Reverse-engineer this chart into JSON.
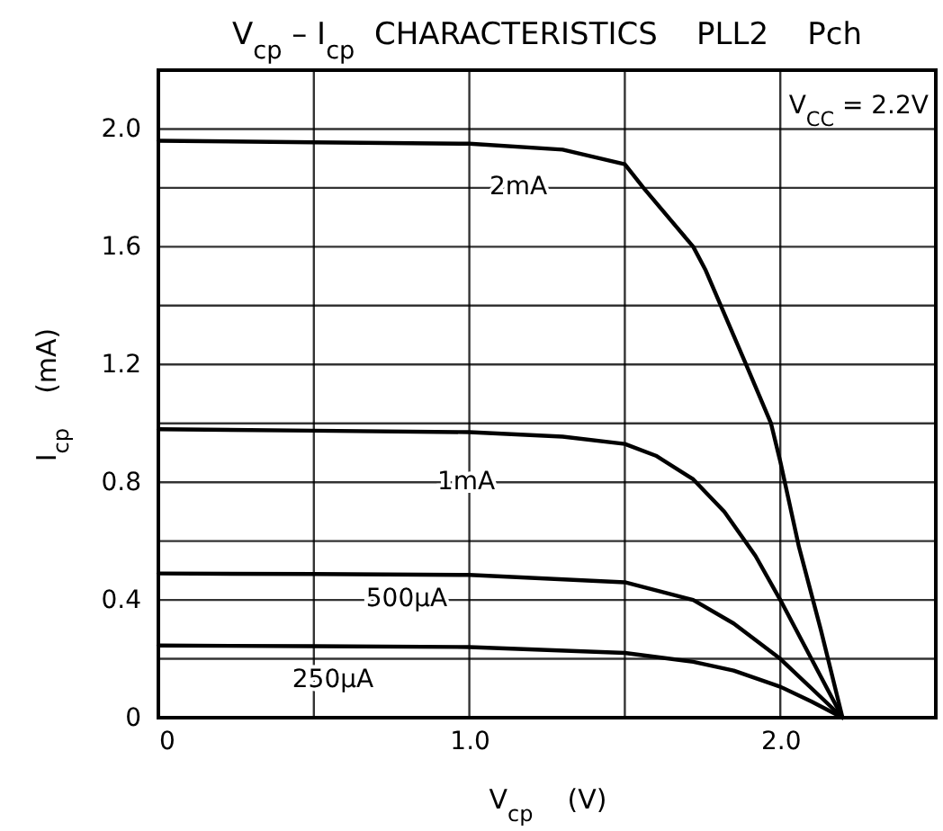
{
  "chart_data": {
    "type": "line",
    "title": "V$_{cp}$ – I$_{cp}$  CHARACTERISTICS    PLL2    Pch",
    "xlabel": "V$_{cp}$    (V)",
    "ylabel": "I$_{cp}$    (mA)",
    "annotations": [
      "V$_{CC}$ = 2.2V"
    ],
    "series": [
      {
        "name": "2mA",
        "color": "#000000",
        "x": [
          0,
          0.5,
          1.0,
          1.3,
          1.5,
          1.56,
          1.72,
          1.76,
          1.89,
          1.97,
          2.0,
          2.06,
          2.13,
          2.2
        ],
        "values": [
          1.96,
          1.955,
          1.95,
          1.93,
          1.88,
          1.8,
          1.6,
          1.52,
          1.2,
          1.0,
          0.87,
          0.58,
          0.3,
          0
        ]
      },
      {
        "name": "1mA",
        "color": "#000000",
        "x": [
          0,
          0.5,
          1.0,
          1.3,
          1.5,
          1.6,
          1.72,
          1.82,
          1.92,
          2.0,
          2.1,
          2.2
        ],
        "values": [
          0.98,
          0.975,
          0.97,
          0.955,
          0.93,
          0.89,
          0.81,
          0.7,
          0.55,
          0.4,
          0.2,
          0
        ]
      },
      {
        "name": "500μA",
        "color": "#000000",
        "x": [
          0,
          0.5,
          1.0,
          1.5,
          1.72,
          1.85,
          2.0,
          2.1,
          2.2
        ],
        "values": [
          0.49,
          0.488,
          0.485,
          0.46,
          0.4,
          0.32,
          0.2,
          0.1,
          0
        ]
      },
      {
        "name": "250μA",
        "color": "#000000",
        "x": [
          0,
          0.5,
          1.0,
          1.5,
          1.72,
          1.85,
          2.0,
          2.1,
          2.2
        ],
        "values": [
          0.245,
          0.243,
          0.24,
          0.22,
          0.19,
          0.16,
          0.105,
          0.055,
          0
        ]
      }
    ],
    "xlim": [
      0,
      2.5
    ],
    "ylim": [
      0,
      2.2
    ],
    "xticks": [
      0,
      {
        "value": 0.5,
        "label": null
      },
      {
        "value": 1,
        "label": "1.0"
      },
      {
        "value": 1.5,
        "label": null
      },
      {
        "value": 2,
        "label": "2.0"
      }
    ],
    "yticks": [
      0,
      {
        "value": 0.2,
        "label": null
      },
      0.4,
      {
        "value": 0.6,
        "label": null
      },
      0.8,
      {
        "value": 1.0,
        "label": null
      },
      1.2,
      {
        "value": 1.4,
        "label": null
      },
      1.6,
      {
        "value": 1.8,
        "label": null
      },
      {
        "value": 2,
        "label": "2.0"
      }
    ],
    "grid": true,
    "line_style": "solid",
    "marker": "none"
  }
}
